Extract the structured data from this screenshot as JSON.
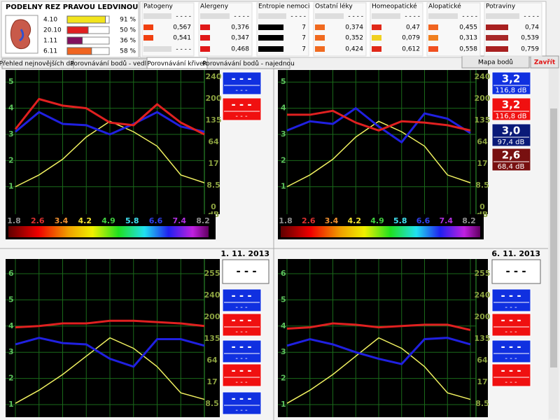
{
  "header": {
    "title": "PODELNY REZ PRAVOU LEDVINOU",
    "rows": [
      {
        "label": "4.10",
        "value": 91,
        "value_label": "91 %",
        "color": "#f2e41c"
      },
      {
        "label": "20.10",
        "value": 50,
        "value_label": "50 %",
        "color": "#e02020"
      },
      {
        "label": "1.11",
        "value": 36,
        "value_label": "36 %",
        "color": "#82105e"
      },
      {
        "label": "6.11",
        "value": 58,
        "value_label": "58 %",
        "color": "#f06420"
      }
    ]
  },
  "panels": [
    {
      "title": "Patogeny",
      "rows": [
        {
          "text": "- - - -",
          "color": "#dddddd"
        },
        {
          "text": "0,567",
          "color": "#f04010"
        },
        {
          "text": "0,541",
          "color": "#f04010"
        },
        {
          "text": "- - - -",
          "color": "#dddddd"
        }
      ]
    },
    {
      "title": "Alergeny",
      "rows": [
        {
          "text": "- - - -",
          "color": "#dddddd"
        },
        {
          "text": "0,376",
          "color": "#e01818"
        },
        {
          "text": "0,347",
          "color": "#e01818"
        },
        {
          "text": "0,468",
          "color": "#e01818"
        }
      ]
    },
    {
      "title": "Entropie nemoci",
      "rows": [
        {
          "text": "- - - -",
          "color": "#dddddd"
        },
        {
          "text": "7",
          "color": "#000000"
        },
        {
          "text": "7",
          "color": "#000000"
        },
        {
          "text": "7",
          "color": "#000000"
        }
      ]
    },
    {
      "title": "Ostatní léky",
      "rows": [
        {
          "text": "- - - -",
          "color": "#dddddd"
        },
        {
          "text": "0,374",
          "color": "#f06a20"
        },
        {
          "text": "0,352",
          "color": "#f06a20"
        },
        {
          "text": "0,424",
          "color": "#f06a20"
        }
      ]
    },
    {
      "title": "Homeopatické",
      "rows": [
        {
          "text": "- - - -",
          "color": "#dddddd"
        },
        {
          "text": "0,47",
          "color": "#e02818"
        },
        {
          "text": "0,079",
          "color": "#f0d020"
        },
        {
          "text": "0,612",
          "color": "#e02818"
        }
      ]
    },
    {
      "title": "Alopatické",
      "rows": [
        {
          "text": "- - - -",
          "color": "#dddddd"
        },
        {
          "text": "0,455",
          "color": "#f06420"
        },
        {
          "text": "0,313",
          "color": "#f08020"
        },
        {
          "text": "0,558",
          "color": "#f05020"
        }
      ]
    },
    {
      "title": "Potraviny",
      "rows": [
        {
          "text": "- - - -",
          "color": "#dddddd"
        },
        {
          "text": "0,74",
          "color": "#a82020"
        },
        {
          "text": "0,539",
          "color": "#a82828"
        },
        {
          "text": "0,759",
          "color": "#a82020"
        }
      ]
    }
  ],
  "tabs": [
    "Přehled nejnovějších dat",
    "Porovnávání bodů - vedle",
    "Porovnávání křivek",
    "Porovnávání bodů - najednou"
  ],
  "active_tab": 2,
  "buttons": {
    "map": "Mapa bodů",
    "close": "Zavřít"
  },
  "charts": [
    {
      "categories": [
        "1.8",
        "2.6",
        "3.4",
        "4.2",
        "4.9",
        "5.8",
        "6.6",
        "7.4",
        "8.2"
      ],
      "category_colors": [
        "#909090",
        "#e03030",
        "#f09030",
        "#f0e030",
        "#40d040",
        "#40e0f0",
        "#3040f0",
        "#b030e0",
        "#909090"
      ],
      "ylim": [
        -0.05,
        5.46
      ],
      "yticks": [
        1,
        2,
        3,
        4,
        5
      ],
      "y2ticks": [
        240,
        200,
        135,
        64,
        17,
        8.5,
        0
      ],
      "y2label": "dB",
      "series": [
        {
          "color": "#f0f060",
          "values": [
            1,
            1.45,
            2.05,
            2.9,
            3.5,
            3.1,
            2.55,
            1.45,
            1.15
          ]
        },
        {
          "color": "#2020e0",
          "values": [
            3.1,
            3.85,
            3.4,
            3.35,
            3.0,
            3.4,
            3.85,
            3.3,
            3.1
          ]
        },
        {
          "color": "#e02020",
          "values": [
            3.2,
            4.35,
            4.1,
            4.0,
            3.45,
            3.35,
            4.15,
            3.45,
            3.0
          ]
        }
      ],
      "boxes": [
        {
          "main": "- - -",
          "sub": "- - -",
          "color": "#1030e0"
        },
        {
          "main": "- - -",
          "sub": "- - -",
          "color": "#f01010"
        }
      ]
    },
    {
      "categories": [
        "1.8",
        "2.6",
        "3.4",
        "4.2",
        "4.9",
        "5.8",
        "6.6",
        "7.4",
        "8.2"
      ],
      "category_colors": [
        "#909090",
        "#e03030",
        "#f09030",
        "#f0e030",
        "#40d040",
        "#40e0f0",
        "#3040f0",
        "#b030e0",
        "#909090"
      ],
      "ylim": [
        -0.05,
        5.46
      ],
      "yticks": [
        1,
        2,
        3,
        4,
        5
      ],
      "y2ticks": [
        240,
        200,
        135,
        64,
        17,
        8.5,
        0
      ],
      "y2label": "dB",
      "series": [
        {
          "color": "#f0f060",
          "values": [
            1,
            1.45,
            2.05,
            2.9,
            3.5,
            3.1,
            2.55,
            1.45,
            1.15
          ]
        },
        {
          "color": "#2020e0",
          "values": [
            3.15,
            3.5,
            3.4,
            4.0,
            3.3,
            2.7,
            3.8,
            3.6,
            3.05
          ]
        },
        {
          "color": "#e02020",
          "values": [
            3.75,
            3.75,
            3.9,
            3.45,
            3.15,
            3.5,
            3.45,
            3.35,
            3.15
          ]
        }
      ],
      "boxes": [
        {
          "main": "3,2",
          "sub": "116,8 dB",
          "color": "#1030e0"
        },
        {
          "main": "3,2",
          "sub": "116,8 dB",
          "color": "#f01010"
        },
        {
          "main": "3,0",
          "sub": "97,4 dB",
          "color": "#0a1a78"
        },
        {
          "main": "2,6",
          "sub": "68,4 dB",
          "color": "#781010"
        }
      ]
    },
    {
      "date": "1. 11. 2013",
      "date_box": "- - -",
      "ylim": [
        0.52,
        6.56
      ],
      "yticks": [
        1,
        2,
        3,
        4,
        5,
        6
      ],
      "y2ticks": [
        255,
        240,
        200,
        135,
        64,
        17,
        8.5
      ],
      "series": [
        {
          "color": "#f0f060",
          "values": [
            1.05,
            1.55,
            2.15,
            2.85,
            3.55,
            3.15,
            2.45,
            1.45,
            1.2
          ]
        },
        {
          "color": "#2020e0",
          "values": [
            3.3,
            3.55,
            3.35,
            3.3,
            2.75,
            2.45,
            3.5,
            3.5,
            3.25
          ]
        },
        {
          "color": "#e02020",
          "values": [
            3.95,
            4.0,
            4.1,
            4.1,
            4.2,
            4.2,
            4.15,
            4.1,
            4.0
          ]
        }
      ],
      "boxes": [
        {
          "main": "- - -",
          "sub": "- - -",
          "color": "#1030e0"
        },
        {
          "main": "- - -",
          "sub": "- - -",
          "color": "#f01010"
        },
        {
          "main": "- - -",
          "sub": "- - -",
          "color": "#1030e0"
        },
        {
          "main": "- - -",
          "sub": "- - -",
          "color": "#f01010"
        },
        {
          "main": "- - -",
          "sub": "- - -",
          "color": "#1030e0"
        }
      ]
    },
    {
      "date": "6. 11. 2013",
      "date_box": "- - -",
      "ylim": [
        0.52,
        6.56
      ],
      "yticks": [
        1,
        2,
        3,
        4,
        5,
        6
      ],
      "y2ticks": [
        255,
        240,
        200,
        135,
        64,
        17,
        8.5
      ],
      "series": [
        {
          "color": "#f0f060",
          "values": [
            1.05,
            1.55,
            2.15,
            2.85,
            3.55,
            3.15,
            2.45,
            1.45,
            1.2
          ]
        },
        {
          "color": "#2020e0",
          "values": [
            3.25,
            3.5,
            3.3,
            3.0,
            2.75,
            2.55,
            3.5,
            3.55,
            3.3
          ]
        },
        {
          "color": "#e02020",
          "values": [
            3.9,
            3.95,
            4.1,
            4.05,
            3.95,
            4.0,
            4.05,
            4.05,
            3.85
          ]
        }
      ],
      "boxes": [
        {
          "main": "- - -",
          "sub": "- - -",
          "color": "#1030e0"
        },
        {
          "main": "- - -",
          "sub": "- - -",
          "color": "#f01010"
        },
        {
          "main": "- - -",
          "sub": "- - -",
          "color": "#1030e0"
        },
        {
          "main": "- - -",
          "sub": "- - -",
          "color": "#f01010"
        }
      ]
    }
  ]
}
